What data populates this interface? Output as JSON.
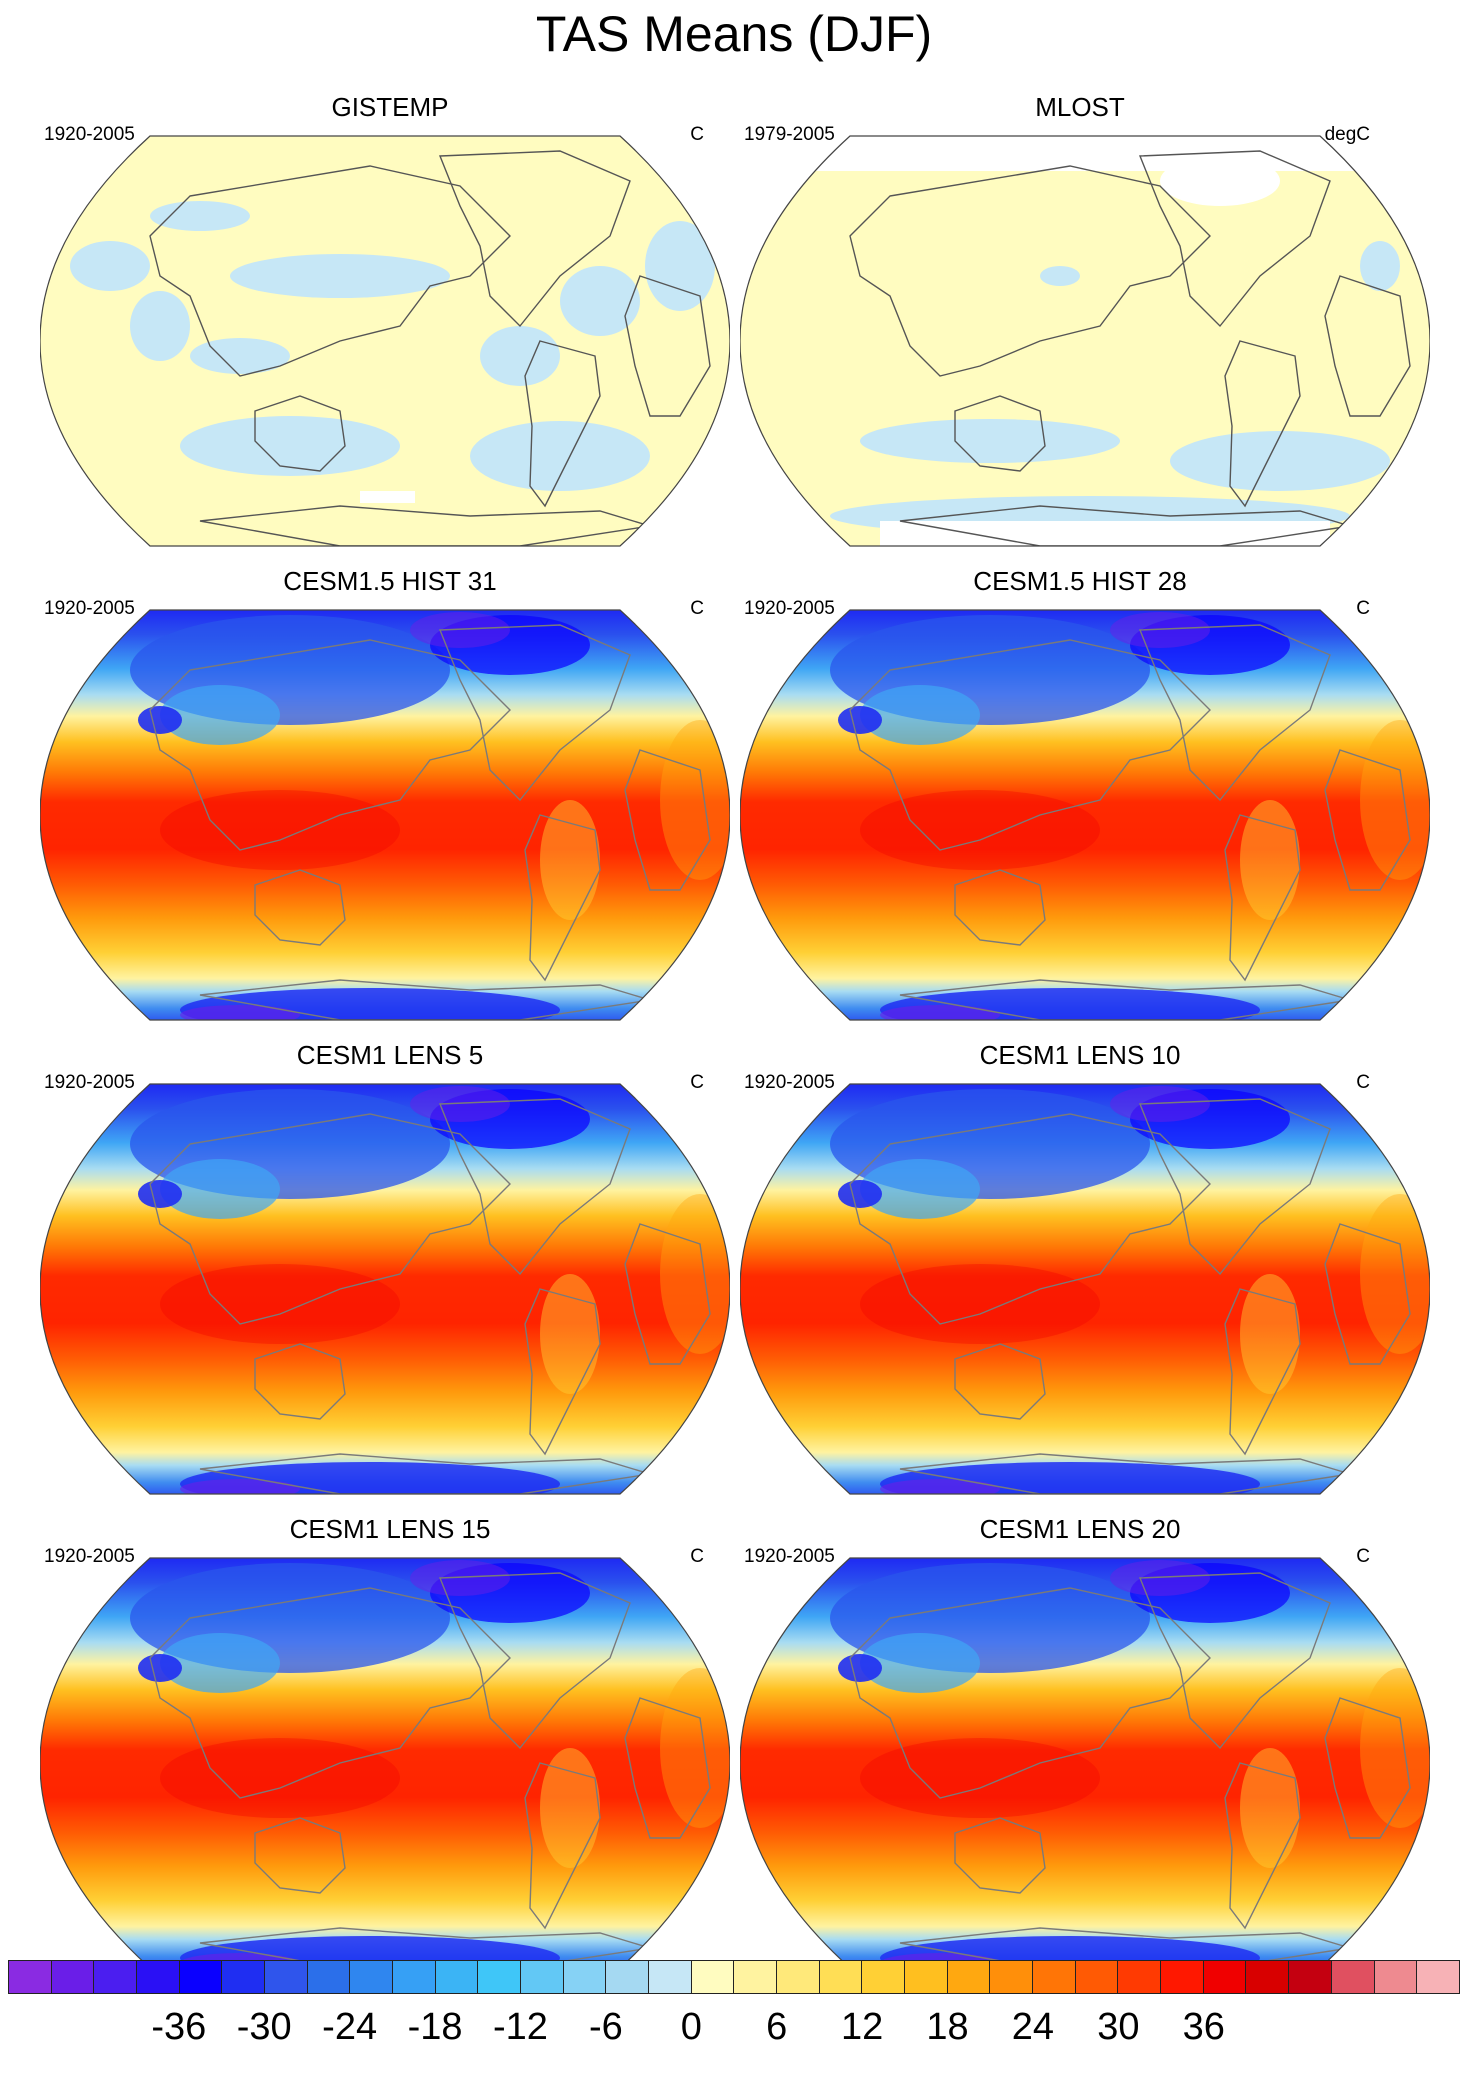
{
  "title": "TAS Means (DJF)",
  "panels": [
    {
      "title": "GISTEMP",
      "period": "1920-2005",
      "units": "C",
      "kind": "obs-anomaly"
    },
    {
      "title": "MLOST",
      "period": "1979-2005",
      "units": "degC",
      "kind": "obs-anomaly"
    },
    {
      "title": "CESM1.5 HIST 31",
      "period": "1920-2005",
      "units": "C",
      "kind": "model"
    },
    {
      "title": "CESM1.5 HIST 28",
      "period": "1920-2005",
      "units": "C",
      "kind": "model"
    },
    {
      "title": "CESM1 LENS 5",
      "period": "1920-2005",
      "units": "C",
      "kind": "model"
    },
    {
      "title": "CESM1 LENS 10",
      "period": "1920-2005",
      "units": "C",
      "kind": "model"
    },
    {
      "title": "CESM1 LENS 15",
      "period": "1920-2005",
      "units": "C",
      "kind": "model"
    },
    {
      "title": "CESM1 LENS 20",
      "period": "1920-2005",
      "units": "C",
      "kind": "model"
    }
  ],
  "colorbar": {
    "ticks": [
      "-36",
      "-30",
      "-24",
      "-18",
      "-12",
      "-6",
      "0",
      "6",
      "12",
      "18",
      "24",
      "30",
      "36"
    ],
    "min": -42,
    "max": 42,
    "step": 3,
    "colors": [
      "#8a2be2",
      "#6a1ee8",
      "#4b1ef0",
      "#2a10f5",
      "#0a00ff",
      "#1f2ef2",
      "#2f55ec",
      "#2b6fea",
      "#2f86ef",
      "#36a0f5",
      "#3bb4f5",
      "#3fc6f8",
      "#62c8f5",
      "#86d2f5",
      "#a5d9f2",
      "#c6e7f6",
      "#fffcc0",
      "#fff3a0",
      "#ffe97a",
      "#ffde55",
      "#ffd035",
      "#ffbf1f",
      "#ffa810",
      "#ff8f0a",
      "#ff7506",
      "#ff5a04",
      "#ff3a02",
      "#ff1800",
      "#f00000",
      "#d80000",
      "#c40010",
      "#e05060",
      "#ee8a90",
      "#f7b2b6"
    ]
  }
}
